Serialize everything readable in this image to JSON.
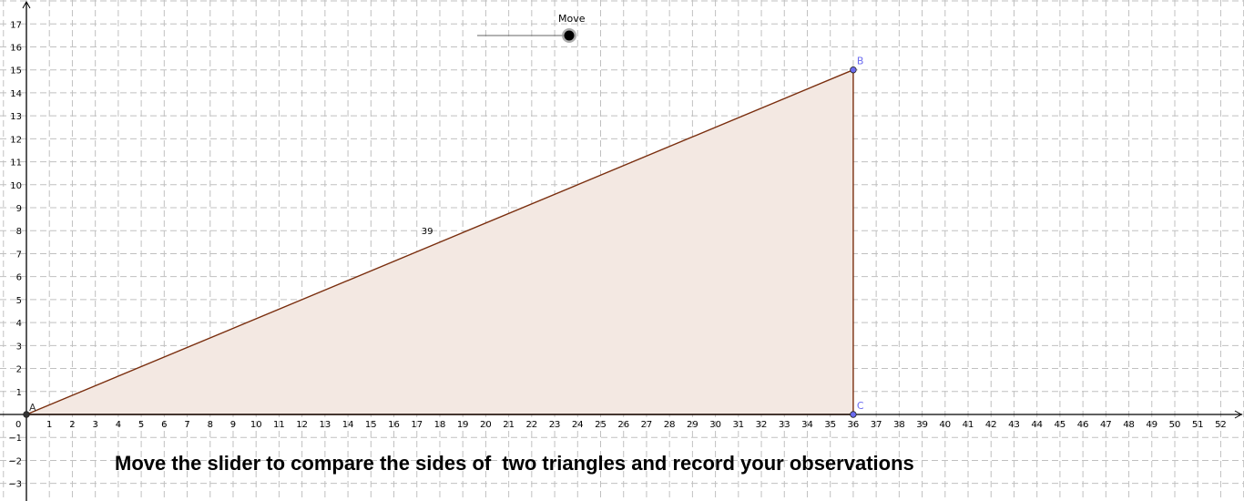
{
  "axes": {
    "x_range": [
      -1,
      53
    ],
    "y_range": [
      -3.6,
      17.9
    ],
    "x_tick_labels": [
      "0",
      "1",
      "2",
      "3",
      "4",
      "5",
      "6",
      "7",
      "8",
      "9",
      "10",
      "11",
      "12",
      "13",
      "14",
      "15",
      "16",
      "17",
      "18",
      "19",
      "20",
      "21",
      "22",
      "23",
      "24",
      "25",
      "26",
      "27",
      "28",
      "29",
      "30",
      "31",
      "32",
      "33",
      "34",
      "35",
      "36",
      "37",
      "38",
      "39",
      "40",
      "41",
      "42",
      "43",
      "44",
      "45",
      "46",
      "47",
      "48",
      "49",
      "50",
      "51",
      "52"
    ],
    "y_tick_labels": [
      "−3",
      "−2",
      "−1",
      "1",
      "2",
      "3",
      "4",
      "5",
      "6",
      "7",
      "8",
      "9",
      "10",
      "11",
      "12",
      "13",
      "14",
      "15",
      "16",
      "17"
    ],
    "grid": true
  },
  "points": [
    {
      "label": "A",
      "x": 0,
      "y": 0,
      "color": "#333333"
    },
    {
      "label": "B",
      "x": 36,
      "y": 15,
      "color": "#6b6bf0"
    },
    {
      "label": "C",
      "x": 36,
      "y": 0,
      "color": "#6b6bf0"
    }
  ],
  "triangle": {
    "fill": "#f3e8e2",
    "stroke": "#7a2e0e"
  },
  "hypotenuse_label": {
    "text": "39",
    "x": 17.2,
    "y": 8
  },
  "slider": {
    "label": "Move",
    "value_fraction": 1.0
  },
  "instruction": "Move the slider to compare the sides of  two triangles and record your observations"
}
